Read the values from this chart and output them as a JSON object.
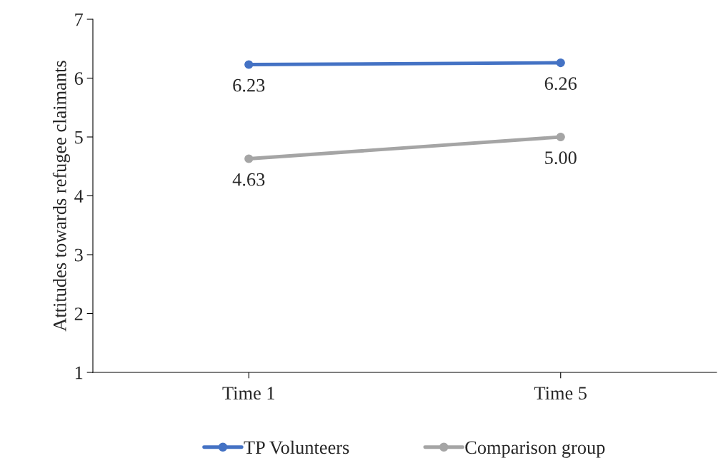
{
  "chart_data": {
    "type": "line",
    "ylabel": "Attitudes towards refugee claimants",
    "categories": [
      "Time 1",
      "Time 5"
    ],
    "series": [
      {
        "name": "TP Volunteers",
        "color": "#4472c4",
        "values": [
          6.23,
          6.26
        ],
        "value_labels": [
          "6.23",
          "6.26"
        ]
      },
      {
        "name": "Comparison group",
        "color": "#a5a5a5",
        "values": [
          4.63,
          5.0
        ],
        "value_labels": [
          "4.63",
          "5.00"
        ]
      }
    ],
    "ylim": [
      1,
      7
    ],
    "yticks": [
      1,
      2,
      3,
      4,
      5,
      6,
      7
    ],
    "grid": false,
    "legend": "bottom",
    "marker": "circle",
    "line_style": "solid"
  }
}
